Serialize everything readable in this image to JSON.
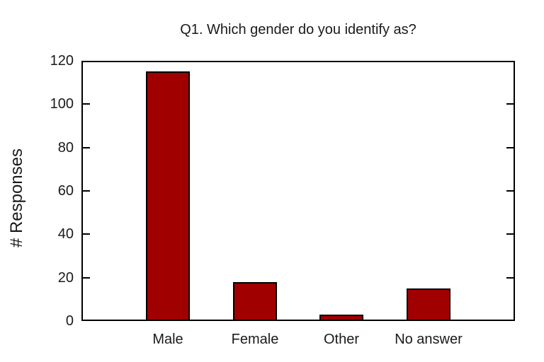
{
  "chart_data": {
    "type": "bar",
    "title": "Q1. Which gender do you identify as?",
    "ylabel": "# Responses",
    "xlabel": "",
    "categories": [
      "Male",
      "Female",
      "Other",
      "No answer"
    ],
    "values": [
      115,
      18,
      3,
      15
    ],
    "ylim": [
      0,
      120
    ],
    "yticks": [
      0,
      20,
      40,
      60,
      80,
      100,
      120
    ],
    "grid": false,
    "legend": "none",
    "bar_fill": "#a00000",
    "bar_border": "#000000",
    "frame_color": "#000000",
    "text_color": "#1a1a1a",
    "background": "#ffffff"
  }
}
